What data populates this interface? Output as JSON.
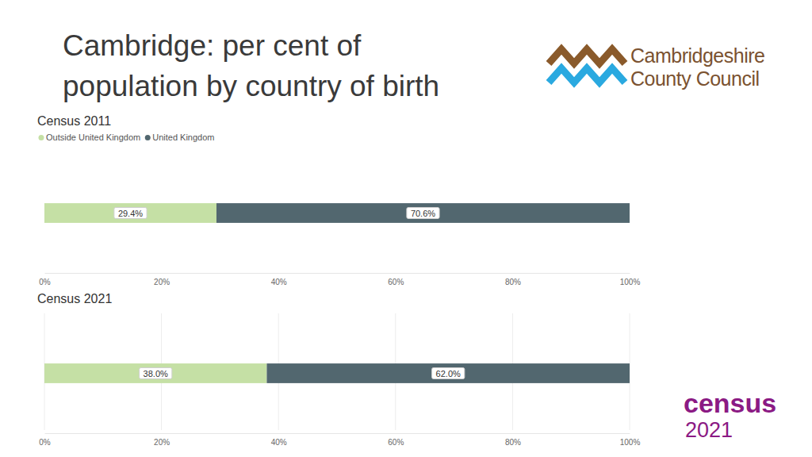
{
  "page": {
    "title_lines": [
      "Cambridge: per cent of",
      "population by country of birth"
    ],
    "council_logo": [
      "Cambridgeshire",
      "County Council"
    ],
    "census_logo": [
      "census",
      "2021"
    ]
  },
  "chart_data": [
    {
      "type": "bar",
      "title": "Census 2011",
      "orientation": "horizontal",
      "stacked": true,
      "categories": [
        null
      ],
      "series": [
        {
          "name": "Outside United Kingdom",
          "color": "#c5e0a5",
          "values": [
            29.4
          ],
          "value_labels": [
            "29.4%"
          ]
        },
        {
          "name": "United Kingdom",
          "color": "#52676f",
          "values": [
            70.6
          ],
          "value_labels": [
            "70.6%"
          ]
        }
      ],
      "xlim": [
        0,
        100
      ],
      "xticks": [
        {
          "value": 0,
          "label": "0%"
        },
        {
          "value": 20,
          "label": "20%"
        },
        {
          "value": 40,
          "label": "40%"
        },
        {
          "value": 60,
          "label": "60%"
        },
        {
          "value": 80,
          "label": "80%"
        },
        {
          "value": 100,
          "label": "100%"
        }
      ],
      "grid": false,
      "legend": "top-left",
      "data_labels": true,
      "tick_labels": "x"
    },
    {
      "type": "bar",
      "title": "Census 2021",
      "orientation": "horizontal",
      "stacked": true,
      "categories": [
        null
      ],
      "series": [
        {
          "name": "Outside United Kingdom",
          "color": "#c5e0a5",
          "values": [
            38.0
          ],
          "value_labels": [
            "38.0%"
          ]
        },
        {
          "name": "United Kingdom",
          "color": "#52676f",
          "values": [
            62.0
          ],
          "value_labels": [
            "62.0%"
          ]
        }
      ],
      "xlim": [
        0,
        100
      ],
      "xticks": [
        {
          "value": 0,
          "label": "0%"
        },
        {
          "value": 20,
          "label": "20%"
        },
        {
          "value": 40,
          "label": "40%"
        },
        {
          "value": 60,
          "label": "60%"
        },
        {
          "value": 80,
          "label": "80%"
        },
        {
          "value": 100,
          "label": "100%"
        }
      ],
      "grid": true,
      "data_labels": true,
      "tick_labels": "x"
    }
  ]
}
